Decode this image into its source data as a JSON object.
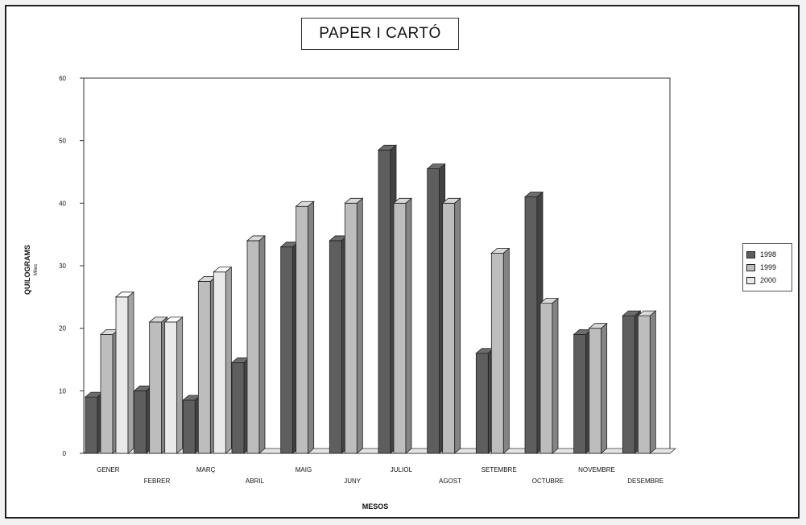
{
  "chart_data": {
    "type": "bar",
    "title": "PAPER I CARTÓ",
    "xlabel": "MESOS",
    "ylabel": "QUILOGRAMS",
    "ylabel_sub": "Miles",
    "ylim": [
      0,
      60
    ],
    "yticks": [
      "0",
      "10",
      "20",
      "30",
      "40",
      "50",
      "60"
    ],
    "categories": [
      "GENER",
      "FEBRER",
      "MARÇ",
      "ABRIL",
      "MAIG",
      "JUNY",
      "JULIOL",
      "AGOST",
      "SETEMBRE",
      "OCTUBRE",
      "NOVEMBRE",
      "DESEMBRE"
    ],
    "series": [
      {
        "name": "1998",
        "color": "#5e5e5e",
        "values": [
          9,
          10,
          8.5,
          14.5,
          33,
          34,
          48.5,
          45.5,
          16,
          41,
          19,
          22
        ]
      },
      {
        "name": "1999",
        "color": "#bdbdbd",
        "values": [
          19,
          21,
          27.5,
          34,
          39.5,
          40,
          40,
          40,
          32,
          24,
          20,
          22
        ]
      },
      {
        "name": "2000",
        "color": "#e9e9e9",
        "values": [
          25,
          21,
          29,
          0,
          0,
          0,
          0,
          0,
          0,
          0,
          0,
          0
        ]
      }
    ],
    "grid": false,
    "legend_position": "right"
  }
}
